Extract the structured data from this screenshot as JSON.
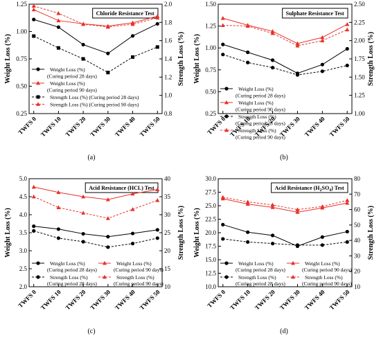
{
  "chart_data": [
    {
      "type": "line",
      "title": "Chloride Resistance Test",
      "caption": "(a)",
      "categories": [
        "TWFS 0",
        "TWFS 10",
        "TWFS 20",
        "TWFS 30",
        "TWFS 40",
        "TWFS 50"
      ],
      "ylabel": "Weight Loss (%)",
      "y2label": "Strength Loss (%)",
      "ylim": [
        0.25,
        1.25
      ],
      "yticks": [
        "0.25",
        "0.50",
        "0.75",
        "1.00",
        "1.25"
      ],
      "y2lim": [
        0.8,
        2.0
      ],
      "y2ticks": [
        "0.8",
        "1.0",
        "1.2",
        "1.4",
        "1.6",
        "1.8",
        "2.0"
      ],
      "legend_position": "center-left",
      "series": [
        {
          "legend": [
            "Weight Loss (%)",
            "(Curing period 28 days)"
          ],
          "axis": "left",
          "color": "#000000",
          "dash": "solid",
          "marker": "circle",
          "values": [
            1.11,
            1.04,
            0.88,
            0.8,
            0.96,
            1.07
          ]
        },
        {
          "legend": [
            "Weight Loss (%)",
            "(Curing period 90 days)"
          ],
          "axis": "left",
          "color": "#e8302a",
          "dash": "solid",
          "marker": "triangle",
          "values": [
            1.2,
            1.1,
            1.07,
            1.05,
            1.08,
            1.14
          ]
        },
        {
          "legend": [
            "Strength Loss (%) (Curing period 28 days)"
          ],
          "axis": "right",
          "color": "#000000",
          "dash": "dashed",
          "marker": "square",
          "values": [
            1.65,
            1.52,
            1.4,
            1.25,
            1.42,
            1.53
          ]
        },
        {
          "legend": [
            "Strength Loss (%) (Curing period 90 days)"
          ],
          "axis": "right",
          "color": "#e8302a",
          "dash": "dashed",
          "marker": "triangle",
          "values": [
            1.98,
            1.9,
            1.78,
            1.75,
            1.78,
            1.85
          ]
        }
      ]
    },
    {
      "type": "line",
      "title": "Sulphate Resistance Test",
      "caption": "(b)",
      "categories": [
        "TWFS 0",
        "TWFS 10",
        "TWFS 20",
        "TWFS 30",
        "TWFS 40",
        "TWFS 50"
      ],
      "ylabel": "Weight Loss (%)",
      "y2label": "Strength Loss (%)",
      "ylim": [
        0.25,
        1.5
      ],
      "yticks": [
        "0.25",
        "0.50",
        "0.75",
        "1.00",
        "1.25",
        "1.50"
      ],
      "y2lim": [
        1.0,
        2.5
      ],
      "y2ticks": [
        "1.00",
        "1.25",
        "1.50",
        "1.75",
        "2.00",
        "2.25",
        "2.50"
      ],
      "legend_position": "bottom-left",
      "series": [
        {
          "legend": [
            "Weight Loss (%)",
            "(Curing period 28 days)"
          ],
          "axis": "left",
          "color": "#000000",
          "dash": "solid",
          "marker": "circle",
          "values": [
            1.04,
            0.95,
            0.86,
            0.71,
            0.81,
            0.99
          ]
        },
        {
          "legend": [
            "Weight Loss (%)",
            "(Curing period 90 days)"
          ],
          "axis": "left",
          "color": "#e8302a",
          "dash": "solid",
          "marker": "triangle",
          "values": [
            1.34,
            1.26,
            1.19,
            1.05,
            1.12,
            1.27
          ]
        },
        {
          "legend": [
            "Strength Loss (%)",
            "(Curing period 28 days)"
          ],
          "axis": "right",
          "color": "#000000",
          "dash": "dashed",
          "marker": "circle",
          "values": [
            1.81,
            1.7,
            1.63,
            1.53,
            1.58,
            1.66
          ]
        },
        {
          "legend": [
            "Strength Loss (%)",
            "(Curing period 90 days)"
          ],
          "axis": "right",
          "color": "#e8302a",
          "dash": "dashed",
          "marker": "triangle",
          "values": [
            2.21,
            2.2,
            2.1,
            1.93,
            2.0,
            2.15
          ]
        }
      ]
    },
    {
      "type": "line",
      "title": "Acid Resistance (HCL) Test",
      "caption": "(c)",
      "categories": [
        "TWFS 0",
        "TWFS 10",
        "TWFS 20",
        "TWFS 30",
        "TWFS 40",
        "TWFS 50"
      ],
      "ylabel": "Weight Loss (%)",
      "y2label": "Strength Loss (%)",
      "ylim": [
        2.0,
        5.0
      ],
      "yticks": [
        "2.0",
        "2.5",
        "3.0",
        "3.5",
        "4.0",
        "4.5",
        "5.0"
      ],
      "y2lim": [
        10,
        40
      ],
      "y2ticks": [
        "10",
        "15",
        "20",
        "25",
        "30",
        "35",
        "40"
      ],
      "legend_position": "bottom",
      "series": [
        {
          "legend": [
            "Weight Loss (%)",
            "(Curing period 28 days)"
          ],
          "axis": "left",
          "color": "#000000",
          "dash": "solid",
          "marker": "circle",
          "values": [
            3.68,
            3.6,
            3.47,
            3.39,
            3.48,
            3.58
          ]
        },
        {
          "legend": [
            "Weight Loss (%)",
            "(Curing period 90 days)"
          ],
          "axis": "left",
          "color": "#e8302a",
          "dash": "solid",
          "marker": "triangle",
          "values": [
            4.77,
            4.62,
            4.5,
            4.42,
            4.58,
            4.7
          ]
        },
        {
          "legend": [
            "Strength Loss (%)",
            "(Curing period 28 days)"
          ],
          "axis": "right",
          "color": "#000000",
          "dash": "dashed",
          "marker": "circle",
          "values": [
            25.5,
            23.5,
            22.5,
            21.0,
            22.0,
            23.5
          ]
        },
        {
          "legend": [
            "Strength Loss (%)",
            "(Curing period 90 days)"
          ],
          "axis": "right",
          "color": "#e8302a",
          "dash": "dashed",
          "marker": "triangle",
          "values": [
            35.0,
            32.0,
            30.5,
            29.0,
            31.5,
            34.0
          ]
        }
      ]
    },
    {
      "type": "line",
      "title": "Acid Resistance (H",
      "title_sub": "2",
      "title_mid": "SO",
      "title_sub2": "4",
      "title_end": ") Test",
      "caption": "(d)",
      "categories": [
        "TWFS 0",
        "TWFS 10",
        "TWFS 20",
        "TWFS 30",
        "TWFS 40",
        "TWFS 50"
      ],
      "ylabel": "Weight Loss (%)",
      "y2label": "Strength Loss (%)",
      "ylim": [
        10.0,
        30.0
      ],
      "yticks": [
        "10.0",
        "12.5",
        "15.0",
        "17.5",
        "20.0",
        "22.5",
        "25.0",
        "27.5",
        "30.0"
      ],
      "y2lim": [
        10,
        80
      ],
      "y2ticks": [
        "10",
        "20",
        "30",
        "40",
        "50",
        "60",
        "70",
        "80"
      ],
      "legend_position": "bottom",
      "series": [
        {
          "legend": [
            "Weight Loss (%)",
            "(Curing period 28 days)"
          ],
          "axis": "left",
          "color": "#000000",
          "dash": "solid",
          "marker": "circle",
          "values": [
            21.5,
            20.1,
            19.5,
            17.5,
            19.2,
            20.2
          ]
        },
        {
          "legend": [
            "Weight Loss (%)",
            "(Curing period 90 days)"
          ],
          "axis": "left",
          "color": "#e8302a",
          "dash": "solid",
          "marker": "triangle",
          "values": [
            26.3,
            25.3,
            24.7,
            23.8,
            24.6,
            25.5
          ]
        },
        {
          "legend": [
            "Strength Loss (%)",
            "(Curing period 28 days)"
          ],
          "axis": "right",
          "color": "#000000",
          "dash": "dashed",
          "marker": "circle",
          "values": [
            41.0,
            39.0,
            38.0,
            37.0,
            37.0,
            39.0
          ]
        },
        {
          "legend": [
            "Strength Loss (%)",
            "(Curing period 90 days)"
          ],
          "axis": "right",
          "color": "#e8302a",
          "dash": "dashed",
          "marker": "triangle",
          "values": [
            68.0,
            65.0,
            63.0,
            60.0,
            62.0,
            66.0
          ]
        }
      ]
    }
  ]
}
